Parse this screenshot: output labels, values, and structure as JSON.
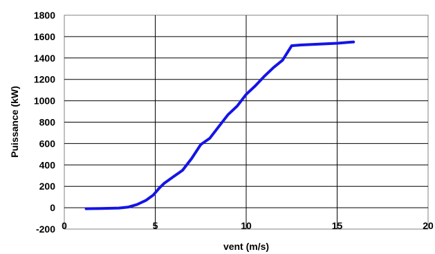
{
  "chart_data": {
    "type": "line",
    "title": "",
    "xlabel": "vent (m/s)",
    "ylabel": "Puissance (kW)",
    "xlim": [
      0,
      20
    ],
    "ylim": [
      -200,
      1800
    ],
    "x_ticks": [
      0,
      5,
      10,
      15,
      20
    ],
    "y_ticks": [
      -200,
      0,
      200,
      400,
      600,
      800,
      1000,
      1200,
      1400,
      1600,
      1800
    ],
    "grid": true,
    "legend": "none",
    "series": [
      {
        "color": "#1414e6",
        "points": [
          [
            1.2,
            -10
          ],
          [
            2.0,
            -7
          ],
          [
            3.0,
            -3
          ],
          [
            3.5,
            5
          ],
          [
            4.0,
            30
          ],
          [
            4.5,
            70
          ],
          [
            4.9,
            120
          ],
          [
            5.2,
            180
          ],
          [
            5.5,
            230
          ],
          [
            6.0,
            290
          ],
          [
            6.5,
            350
          ],
          [
            7.0,
            460
          ],
          [
            7.5,
            590
          ],
          [
            8.0,
            650
          ],
          [
            8.5,
            760
          ],
          [
            9.0,
            870
          ],
          [
            9.5,
            950
          ],
          [
            10.0,
            1060
          ],
          [
            10.5,
            1140
          ],
          [
            11.0,
            1230
          ],
          [
            11.5,
            1310
          ],
          [
            12.0,
            1380
          ],
          [
            12.5,
            1515
          ],
          [
            13.0,
            1522
          ],
          [
            14.0,
            1530
          ],
          [
            15.0,
            1538
          ],
          [
            15.9,
            1550
          ]
        ]
      }
    ]
  }
}
